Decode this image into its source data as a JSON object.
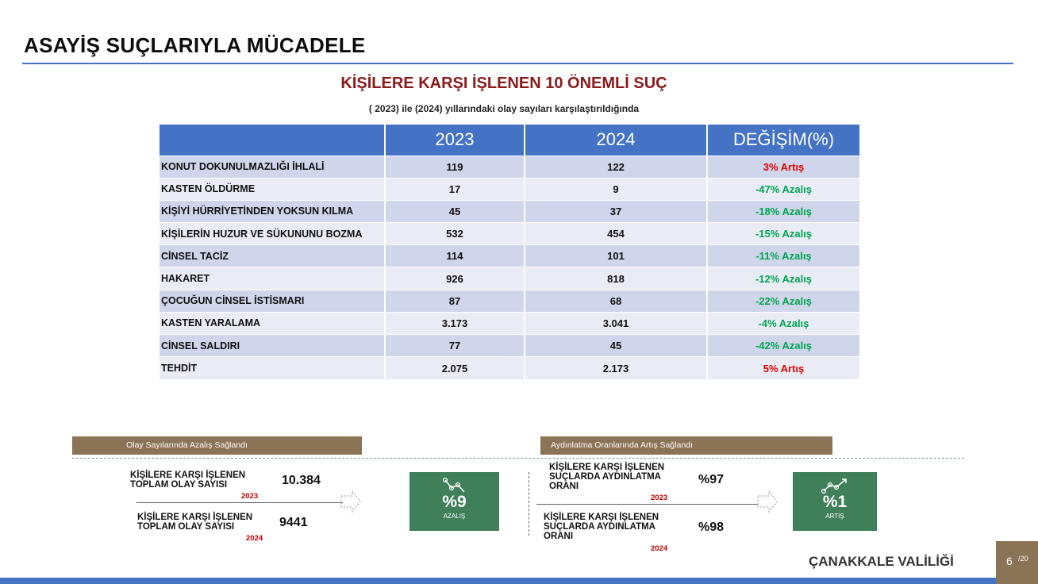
{
  "slide_title": "ASAYİŞ SUÇLARIYLA MÜCADELE",
  "section_title": "KİŞİLERE KARŞI İŞLENEN 10 ÖNEMLİ SUÇ",
  "section_subtitle": "( 2023) ile (2024) yıllarındaki olay sayıları karşılaştırıldığında",
  "table": {
    "headers": [
      "",
      "2023",
      "2024",
      "DEĞİŞİM(%)"
    ],
    "rows": [
      {
        "name": "KONUT DOKUNULMAZLIĞI İHLALİ",
        "y2023": "119",
        "y2024": "122",
        "change": "3% Artış",
        "trend": "increase"
      },
      {
        "name": "KASTEN ÖLDÜRME",
        "y2023": "17",
        "y2024": "9",
        "change": "-47% Azalış",
        "trend": "decrease"
      },
      {
        "name": "KİŞİYİ HÜRRİYETİNDEN YOKSUN KILMA",
        "y2023": "45",
        "y2024": "37",
        "change": "-18% Azalış",
        "trend": "decrease"
      },
      {
        "name": "KİŞİLERİN HUZUR VE SÜKUNUNU BOZMA",
        "y2023": "532",
        "y2024": "454",
        "change": "-15% Azalış",
        "trend": "decrease"
      },
      {
        "name": "CİNSEL TACİZ",
        "y2023": "114",
        "y2024": "101",
        "change": "-11% Azalış",
        "trend": "decrease"
      },
      {
        "name": "HAKARET",
        "y2023": "926",
        "y2024": "818",
        "change": "-12% Azalış",
        "trend": "decrease"
      },
      {
        "name": "ÇOCUĞUN CİNSEL İSTİSMARI",
        "y2023": "87",
        "y2024": "68",
        "change": "-22% Azalış",
        "trend": "decrease"
      },
      {
        "name": "KASTEN YARALAMA",
        "y2023": "3.173",
        "y2024": "3.041",
        "change": "-4% Azalış",
        "trend": "decrease"
      },
      {
        "name": "CİNSEL SALDIRI",
        "y2023": "77",
        "y2024": "45",
        "change": "-42% Azalış",
        "trend": "decrease"
      },
      {
        "name": "TEHDİT",
        "y2023": "2.075",
        "y2024": "2.173",
        "change": "5% Artış",
        "trend": "increase"
      }
    ]
  },
  "left_panel": {
    "band_label": "Olay Sayılarında Azalış Sağlandı",
    "item1": {
      "label_line1": "KİŞİLERE KARŞI İŞLENEN",
      "label_line2": "TOPLAM OLAY SAYISI",
      "year": "2023",
      "value": "10.384"
    },
    "item2": {
      "label_line1": "KİŞİLERE KARŞI İŞLENEN",
      "label_line2": "TOPLAM OLAY SAYISI",
      "year": "2024",
      "value": "9441"
    },
    "kpi": {
      "value": "%9",
      "caption": "AZALIŞ",
      "icon": "trend-down-icon"
    }
  },
  "right_panel": {
    "band_label": "Aydınlatma Oranlarında Artış Sağlandı",
    "item1": {
      "label_line1": "KİŞİLERE KARŞI İŞLENEN",
      "label_line2": "SUÇLARDA AYDINLATMA",
      "label_line3": "ORANI",
      "year": "2023",
      "value": "%97"
    },
    "item2": {
      "label_line1": "KİŞİLERE KARŞI İŞLENEN",
      "label_line2": "SUÇLARDA AYDINLATMA",
      "label_line3": "ORANI",
      "year": "2024",
      "value": "%98"
    },
    "kpi": {
      "value": "%1",
      "caption": "ARTIŞ",
      "icon": "trend-up-icon"
    }
  },
  "footer": {
    "organization": "ÇANAKKALE VALİLİĞİ",
    "page": "6",
    "total": "/20"
  },
  "colors": {
    "header_blue": "#4472c4",
    "row_dark": "#cfd5ea",
    "row_light": "#e9ebf5",
    "increase": "#e00000",
    "decrease": "#00a550",
    "band_brown": "#8b7355",
    "kpi_green": "#3f7f5a",
    "title_red": "#8b1a1a"
  }
}
